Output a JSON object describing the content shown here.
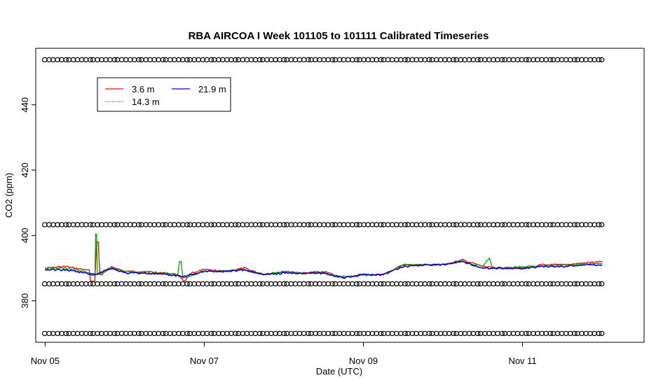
{
  "chart_data": {
    "type": "line",
    "title": "RBA AIRCOA I  Week 101105 to 101111  Calibrated Timeseries",
    "xlabel": "Date (UTC)",
    "ylabel": "CO2 (ppm)",
    "xlim": [
      "2010-11-04 21:10",
      "2010-11-12 12:40"
    ],
    "ylim": [
      367.3,
      457.3
    ],
    "x_ticks": [
      {
        "x": "2010-11-05",
        "label": "Nov 05"
      },
      {
        "x": "2010-11-07",
        "label": "Nov 07"
      },
      {
        "x": "2010-11-09",
        "label": "Nov 09"
      },
      {
        "x": "2010-11-11",
        "label": "Nov 11"
      }
    ],
    "y_ticks": [
      380,
      400,
      420,
      440
    ],
    "grid": false,
    "legend": {
      "position": "top-left",
      "entries": [
        {
          "label": "3.6 m",
          "color": "#ff0000",
          "style": "solid"
        },
        {
          "label": "21.9 m",
          "color": "#0000cc",
          "style": "solid"
        },
        {
          "label": "14.3 m",
          "color": "#00aa00",
          "style": "dotted"
        }
      ]
    },
    "series": [
      {
        "name": "3.6 m",
        "color": "#ff0000",
        "x": [
          "2010-11-05 00:00",
          "2010-11-05 06:00",
          "2010-11-05 12:00",
          "2010-11-05 15:00",
          "2010-11-05 16:00",
          "2010-11-05 17:00",
          "2010-11-05 20:00",
          "2010-11-06 00:00",
          "2010-11-06 06:00",
          "2010-11-06 12:00",
          "2010-11-06 16:00",
          "2010-11-06 18:00",
          "2010-11-06 20:00",
          "2010-11-07 00:00",
          "2010-11-07 06:00",
          "2010-11-07 12:00",
          "2010-11-07 18:00",
          "2010-11-08 00:00",
          "2010-11-08 06:00",
          "2010-11-08 12:00",
          "2010-11-08 18:00",
          "2010-11-09 00:00",
          "2010-11-09 06:00",
          "2010-11-09 12:00",
          "2010-11-09 18:00",
          "2010-11-10 00:00",
          "2010-11-10 06:00",
          "2010-11-10 12:00",
          "2010-11-10 18:00",
          "2010-11-11 00:00",
          "2010-11-11 06:00",
          "2010-11-11 12:00",
          "2010-11-11 18:00",
          "2010-11-12 00:00"
        ],
        "values": [
          390.0,
          390.5,
          389.5,
          386.0,
          398.0,
          388.0,
          390.5,
          389.0,
          389.0,
          388.5,
          388.0,
          386.0,
          388.5,
          389.5,
          389.0,
          390.0,
          388.0,
          389.0,
          388.5,
          389.0,
          387.0,
          388.0,
          388.0,
          391.0,
          391.0,
          391.0,
          392.5,
          390.5,
          390.0,
          390.0,
          391.0,
          391.0,
          391.5,
          392.0
        ]
      },
      {
        "name": "14.3 m",
        "color": "#00aa00",
        "x": [
          "2010-11-05 00:00",
          "2010-11-05 06:00",
          "2010-11-05 12:00",
          "2010-11-05 15:00",
          "2010-11-05 15:30",
          "2010-11-05 16:00",
          "2010-11-05 20:00",
          "2010-11-06 00:00",
          "2010-11-06 06:00",
          "2010-11-06 12:00",
          "2010-11-06 16:00",
          "2010-11-06 17:00",
          "2010-11-06 18:00",
          "2010-11-07 00:00",
          "2010-11-07 06:00",
          "2010-11-07 12:00",
          "2010-11-07 18:00",
          "2010-11-08 00:00",
          "2010-11-08 06:00",
          "2010-11-08 12:00",
          "2010-11-08 18:00",
          "2010-11-09 00:00",
          "2010-11-09 06:00",
          "2010-11-09 12:00",
          "2010-11-09 18:00",
          "2010-11-10 00:00",
          "2010-11-10 06:00",
          "2010-11-10 12:00",
          "2010-11-10 14:00",
          "2010-11-10 15:00",
          "2010-11-10 18:00",
          "2010-11-11 00:00",
          "2010-11-11 12:00",
          "2010-11-12 00:00"
        ],
        "values": [
          390.0,
          390.0,
          389.0,
          387.5,
          400.5,
          388.0,
          390.0,
          389.0,
          388.5,
          388.5,
          388.0,
          392.0,
          387.0,
          389.0,
          389.0,
          389.5,
          388.0,
          389.0,
          388.5,
          388.5,
          387.5,
          388.0,
          388.0,
          391.0,
          391.0,
          391.0,
          392.0,
          390.5,
          393.0,
          390.0,
          390.0,
          390.5,
          391.0,
          391.5
        ]
      },
      {
        "name": "21.9 m",
        "color": "#0000cc",
        "x": [
          "2010-11-05 00:00",
          "2010-11-05 06:00",
          "2010-11-05 12:00",
          "2010-11-05 15:00",
          "2010-11-05 16:00",
          "2010-11-05 20:00",
          "2010-11-06 00:00",
          "2010-11-06 06:00",
          "2010-11-06 12:00",
          "2010-11-06 18:00",
          "2010-11-07 00:00",
          "2010-11-07 06:00",
          "2010-11-07 12:00",
          "2010-11-07 18:00",
          "2010-11-08 00:00",
          "2010-11-08 06:00",
          "2010-11-08 12:00",
          "2010-11-08 18:00",
          "2010-11-09 00:00",
          "2010-11-09 06:00",
          "2010-11-09 12:00",
          "2010-11-09 18:00",
          "2010-11-10 00:00",
          "2010-11-10 06:00",
          "2010-11-10 12:00",
          "2010-11-10 18:00",
          "2010-11-11 00:00",
          "2010-11-11 06:00",
          "2010-11-11 12:00",
          "2010-11-11 18:00",
          "2010-11-12 00:00"
        ],
        "values": [
          389.5,
          389.5,
          388.5,
          388.0,
          388.5,
          390.0,
          388.5,
          388.5,
          388.0,
          387.5,
          389.0,
          389.0,
          389.5,
          388.0,
          388.5,
          388.5,
          388.5,
          387.0,
          388.0,
          388.0,
          390.5,
          391.0,
          391.0,
          392.0,
          390.0,
          390.0,
          390.0,
          390.5,
          390.5,
          391.0,
          391.0
        ]
      },
      {
        "name": "",
        "type": "markers",
        "marker": "circle",
        "x": [
          "2010-11-05 00:00",
          "2010-11-12 00:00"
        ],
        "values": [
          453.8,
          453.8
        ]
      },
      {
        "name": "",
        "type": "markers",
        "marker": "circle",
        "x": [
          "2010-11-05 00:00",
          "2010-11-12 00:00"
        ],
        "values": [
          403.3,
          403.3
        ]
      },
      {
        "name": "",
        "type": "markers",
        "marker": "circle",
        "x": [
          "2010-11-05 00:00",
          "2010-11-12 00:00"
        ],
        "values": [
          385.2,
          385.2
        ]
      },
      {
        "name": "",
        "type": "markers",
        "marker": "circle",
        "x": [
          "2010-11-05 00:00",
          "2010-11-12 00:00"
        ],
        "values": [
          370.0,
          370.0
        ]
      }
    ]
  }
}
